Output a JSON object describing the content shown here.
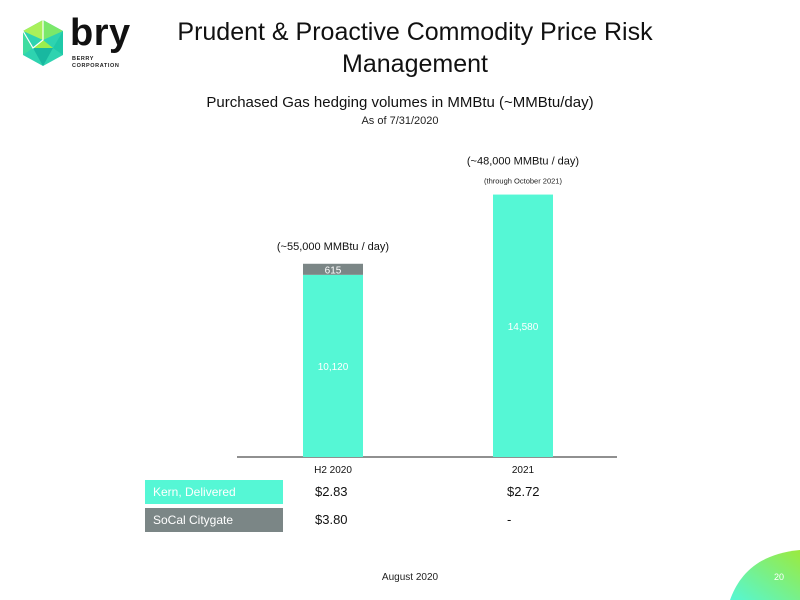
{
  "logo": {
    "word": "bry",
    "sub": "BERRY CORPORATION"
  },
  "header": {
    "title": "Prudent & Proactive Commodity Price Risk Management",
    "subtitle": "Purchased Gas hedging volumes in MMBtu (~MMBtu/day)",
    "as_of": "As of 7/31/2020"
  },
  "colors": {
    "kern": "#55F7D5",
    "socal": "#7B8686",
    "accent_green": "#8FE04C"
  },
  "chart_data": {
    "type": "bar",
    "stacked": true,
    "categories": [
      "H2 2020",
      "2021"
    ],
    "series": [
      {
        "name": "Kern, Delivered",
        "values": [
          10120,
          14580
        ]
      },
      {
        "name": "SoCal Citygate",
        "values": [
          615,
          null
        ]
      }
    ],
    "ylim": [
      0,
      16500
    ],
    "annotations": [
      {
        "category": "H2 2020",
        "main": "(~55,000 MMBtu / day)",
        "note": ""
      },
      {
        "category": "2021",
        "main": "(~48,000 MMBtu / day)",
        "note": "(through October 2021)"
      }
    ],
    "data_labels": [
      {
        "category": "H2 2020",
        "series": "Kern, Delivered",
        "text": "10,120"
      },
      {
        "category": "H2 2020",
        "series": "SoCal Citygate",
        "text": "615"
      },
      {
        "category": "2021",
        "series": "Kern, Delivered",
        "text": "14,580"
      }
    ]
  },
  "price_table": {
    "rows": [
      {
        "label": "Kern, Delivered",
        "values": [
          "$2.83",
          "$2.72"
        ]
      },
      {
        "label": "SoCal Citygate",
        "values": [
          "$3.80",
          "-"
        ]
      }
    ]
  },
  "footer": {
    "date": "August 2020",
    "page": "20"
  }
}
